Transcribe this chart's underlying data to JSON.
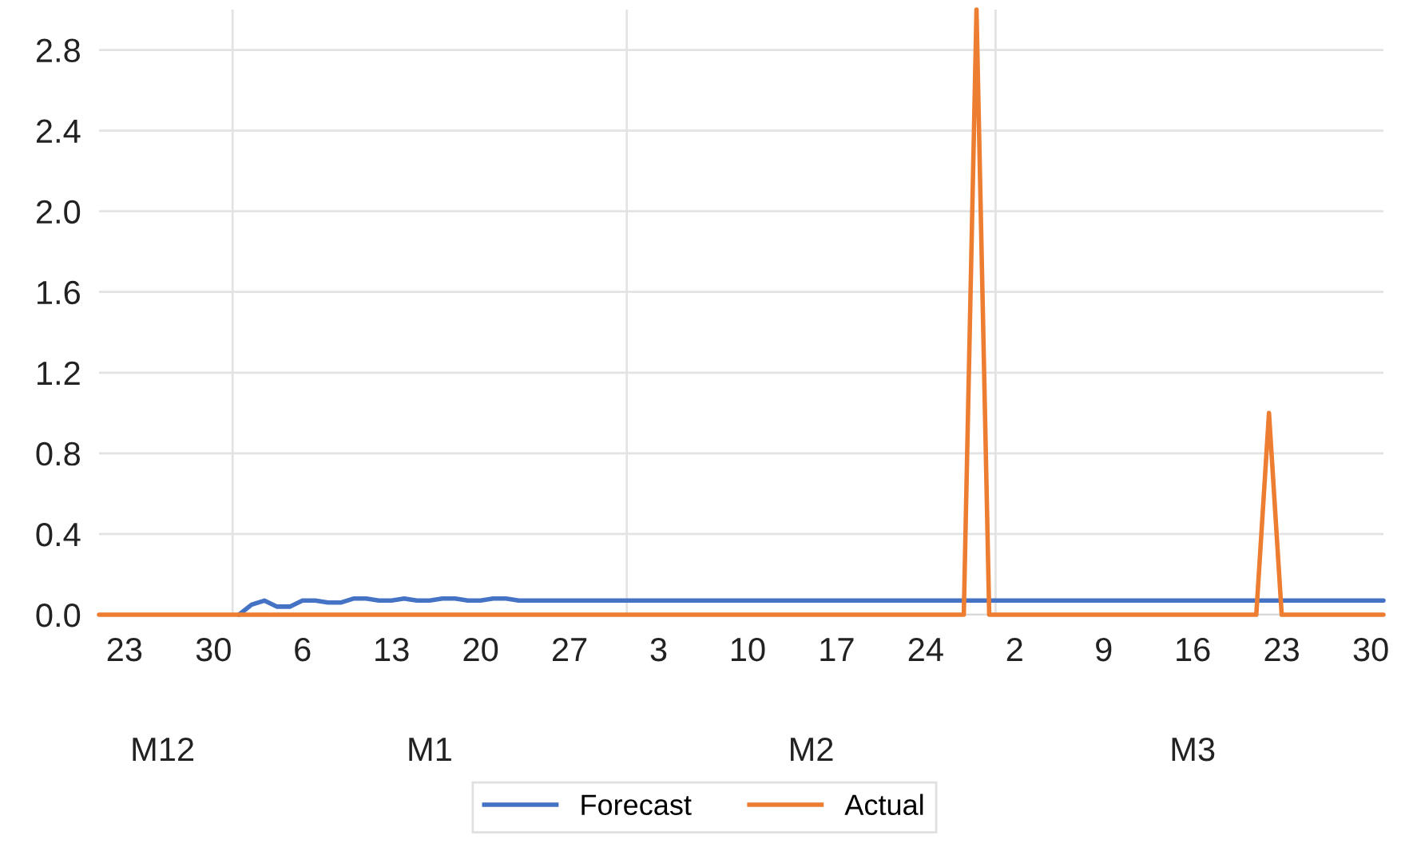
{
  "chart_data": {
    "type": "line",
    "categories": [
      null,
      null,
      "23",
      null,
      null,
      null,
      null,
      null,
      null,
      "30",
      null,
      null,
      null,
      null,
      null,
      null,
      "6",
      null,
      null,
      null,
      null,
      null,
      null,
      "13",
      null,
      null,
      null,
      null,
      null,
      null,
      "20",
      null,
      null,
      null,
      null,
      null,
      null,
      "27",
      null,
      null,
      null,
      null,
      null,
      null,
      "3",
      null,
      null,
      null,
      null,
      null,
      null,
      "10",
      null,
      null,
      null,
      null,
      null,
      null,
      "17",
      null,
      null,
      null,
      null,
      null,
      null,
      "24",
      null,
      null,
      null,
      null,
      null,
      null,
      "2",
      null,
      null,
      null,
      null,
      null,
      null,
      "9",
      null,
      null,
      null,
      null,
      null,
      null,
      "16",
      null,
      null,
      null,
      null,
      null,
      null,
      "23",
      null,
      null,
      null,
      null,
      null,
      null,
      "30",
      null
    ],
    "series": [
      {
        "name": "Forecast",
        "color": "#4472c4",
        "values": [
          null,
          null,
          null,
          null,
          null,
          null,
          null,
          null,
          null,
          null,
          null,
          0,
          0.05,
          0.07,
          0.04,
          0.04,
          0.07,
          0.07,
          0.06,
          0.06,
          0.08,
          0.08,
          0.07,
          0.07,
          0.08,
          0.07,
          0.07,
          0.08,
          0.08,
          0.07,
          0.07,
          0.08,
          0.08,
          0.07,
          0.07,
          0.07,
          0.07,
          0.07,
          0.07,
          0.07,
          0.07,
          0.07,
          0.07,
          0.07,
          0.07,
          0.07,
          0.07,
          0.07,
          0.07,
          0.07,
          0.07,
          0.07,
          0.07,
          0.07,
          0.07,
          0.07,
          0.07,
          0.07,
          0.07,
          0.07,
          0.07,
          0.07,
          0.07,
          0.07,
          0.07,
          0.07,
          0.07,
          0.07,
          0.07,
          0.07,
          0.07,
          0.07,
          0.07,
          0.07,
          0.07,
          0.07,
          0.07,
          0.07,
          0.07,
          0.07,
          0.07,
          0.07,
          0.07,
          0.07,
          0.07,
          0.07,
          0.07,
          0.07,
          0.07,
          0.07,
          0.07,
          0.07,
          0.07,
          0.07,
          0.07,
          0.07,
          0.07,
          0.07,
          0.07,
          0.07,
          0.07,
          0.07
        ]
      },
      {
        "name": "Actual",
        "color": "#ed7d31",
        "values": [
          0,
          0,
          0,
          0,
          0,
          0,
          0,
          0,
          0,
          0,
          0,
          0,
          0,
          0,
          0,
          0,
          0,
          0,
          0,
          0,
          0,
          0,
          0,
          0,
          0,
          0,
          0,
          0,
          0,
          0,
          0,
          0,
          0,
          0,
          0,
          0,
          0,
          0,
          0,
          0,
          0,
          0,
          0,
          0,
          0,
          0,
          0,
          0,
          0,
          0,
          0,
          0,
          0,
          0,
          0,
          0,
          0,
          0,
          0,
          0,
          0,
          0,
          0,
          0,
          0,
          0,
          0,
          0,
          0,
          3.0,
          0,
          0,
          0,
          0,
          0,
          0,
          0,
          0,
          0,
          0,
          0,
          0,
          0,
          0,
          0,
          0,
          0,
          0,
          0,
          0,
          0,
          0,
          1.0,
          0,
          0,
          0,
          0,
          0,
          0,
          0,
          0,
          0
        ]
      }
    ],
    "annotations": [
      "M12",
      "M1",
      "M2",
      "M3"
    ],
    "ylim": [
      0,
      3.0
    ],
    "yticks": [
      {
        "value": 0,
        "label": "0.0"
      },
      {
        "value": 0.4,
        "label": "0.4"
      },
      {
        "value": 0.8,
        "label": "0.8"
      },
      {
        "value": 1.2,
        "label": "1.2"
      },
      {
        "value": 1.6,
        "label": "1.6"
      },
      {
        "value": 2,
        "label": "2.0"
      },
      {
        "value": 2.4,
        "label": "2.4"
      },
      {
        "value": 2.8,
        "label": "2.8"
      }
    ],
    "grid": "y",
    "legend": "bottom",
    "line_style": "solid"
  }
}
